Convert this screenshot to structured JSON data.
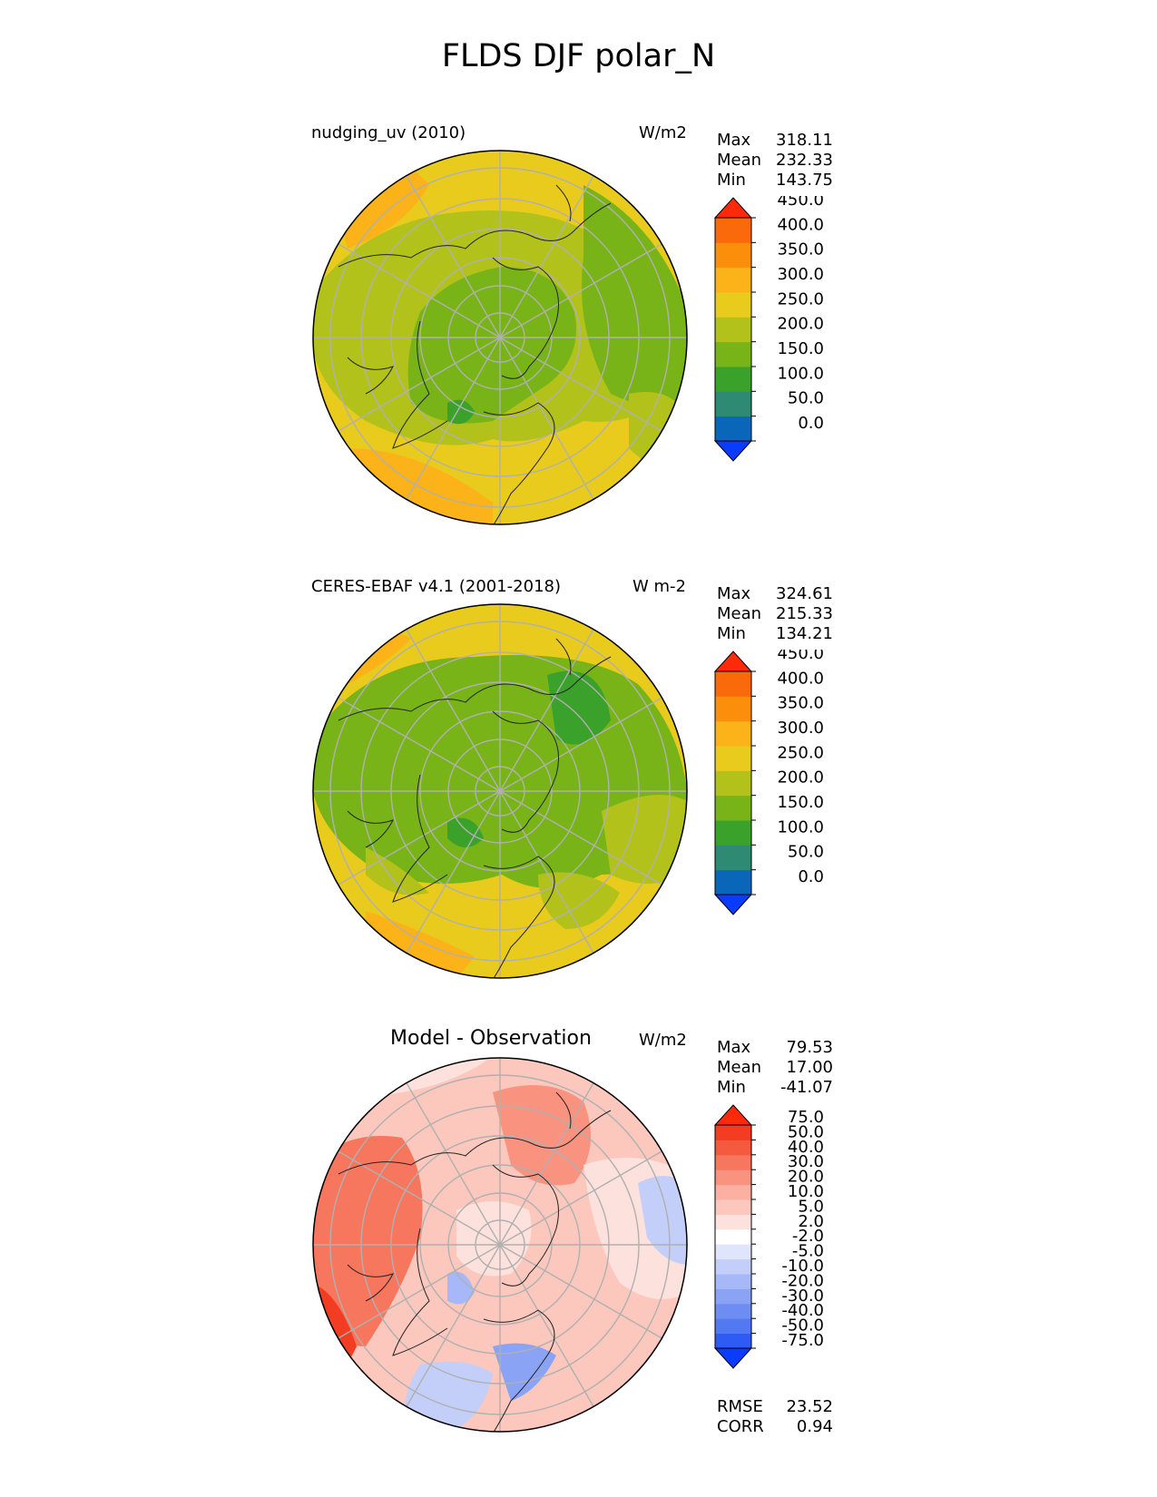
{
  "figure": {
    "title": "FLDS DJF polar_N"
  },
  "panels": [
    {
      "name": "test",
      "title": "nudging_uv (2010)",
      "units": "W/m2",
      "stats": {
        "max_label": "Max",
        "max": "318.11",
        "mean_label": "Mean",
        "mean": "232.33",
        "min_label": "Min",
        "min": "143.75"
      }
    },
    {
      "name": "reference",
      "title": "CERES-EBAF v4.1 (2001-2018)",
      "units": "W m-2",
      "stats": {
        "max_label": "Max",
        "max": "324.61",
        "mean_label": "Mean",
        "mean": "215.33",
        "min_label": "Min",
        "min": "134.21"
      }
    },
    {
      "name": "difference",
      "title": "Model - Observation",
      "units": "W/m2",
      "stats": {
        "max_label": "Max",
        "max": "79.53",
        "mean_label": "Mean",
        "mean": "17.00",
        "min_label": "Min",
        "min": "-41.07"
      },
      "metrics": {
        "rmse_label": "RMSE",
        "rmse": "23.52",
        "corr_label": "CORR",
        "corr": "0.94"
      }
    }
  ],
  "colorbars": {
    "field": {
      "ticks": [
        "0.0",
        "50.0",
        "100.0",
        "150.0",
        "200.0",
        "250.0",
        "300.0",
        "350.0",
        "400.0",
        "450.0"
      ],
      "colors": [
        "#0a3cff",
        "#0a66b8",
        "#2e8a73",
        "#3aa12a",
        "#78b418",
        "#b2c21a",
        "#e8cb1c",
        "#fcb31a",
        "#fb8f0c",
        "#fb6a0a",
        "#ff2a0a"
      ]
    },
    "diff": {
      "ticks": [
        "-75.0",
        "-50.0",
        "-40.0",
        "-30.0",
        "-20.0",
        "-10.0",
        "-5.0",
        "-2.0",
        "2.0",
        "5.0",
        "10.0",
        "20.0",
        "30.0",
        "40.0",
        "50.0",
        "75.0"
      ],
      "colors": [
        "#0a3cff",
        "#2e5bf4",
        "#5278f2",
        "#6d8df3",
        "#8aa3f5",
        "#a6b8f7",
        "#c3cff9",
        "#dfe5fb",
        "#ffffff",
        "#fde1dc",
        "#fcc7bd",
        "#fbb0a1",
        "#f99380",
        "#f7765e",
        "#f55a3e",
        "#f33d22",
        "#ff2a0a"
      ]
    }
  }
}
